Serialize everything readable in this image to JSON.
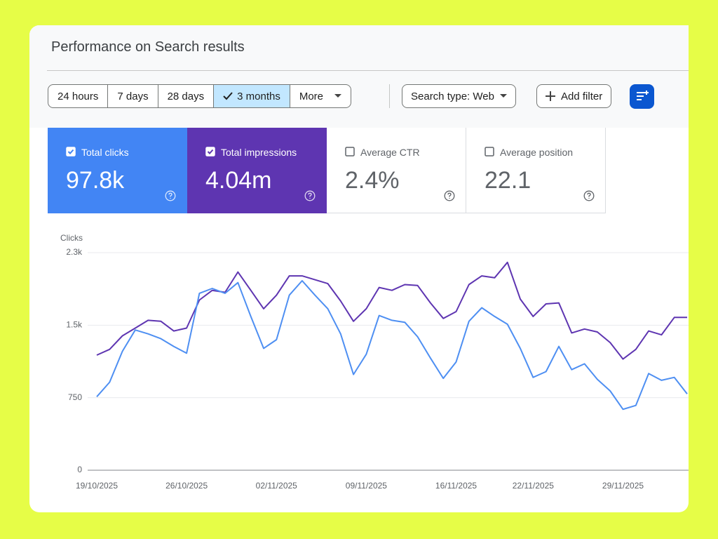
{
  "header": {
    "title": "Performance on Search results"
  },
  "date_ranges": [
    "24 hours",
    "7 days",
    "28 days",
    "3 months",
    "More"
  ],
  "selected_range": 3,
  "filters": {
    "search_type": "Search type: Web",
    "add_filter": "Add filter"
  },
  "metrics": [
    {
      "label": "Total clicks",
      "value": "97.8k",
      "checked": true,
      "color": "#4285f4"
    },
    {
      "label": "Total impressions",
      "value": "4.04m",
      "checked": true,
      "color": "#5e35b1"
    },
    {
      "label": "Average CTR",
      "value": "2.4%",
      "checked": false,
      "color": "#00897b"
    },
    {
      "label": "Average position",
      "value": "22.1",
      "checked": false,
      "color": "#e8710a"
    }
  ],
  "chart_data": {
    "type": "line",
    "y_label": "Clicks",
    "categories": [
      "19/10/2025",
      null,
      null,
      null,
      null,
      null,
      null,
      "26/10/2025",
      null,
      null,
      null,
      null,
      null,
      null,
      "02/11/2025",
      null,
      null,
      null,
      null,
      null,
      null,
      "09/11/2025",
      null,
      null,
      null,
      null,
      null,
      null,
      "16/11/2025",
      null,
      null,
      null,
      null,
      null,
      "22/11/2025",
      null,
      null,
      null,
      null,
      null,
      null,
      "29/11/2025",
      null,
      null,
      null,
      null,
      null
    ],
    "series": [
      {
        "color": "#5e35b1",
        "values": [
          1190,
          1250,
          1390,
          1470,
          1550,
          1540,
          1440,
          1470,
          1760,
          1860,
          1840,
          2050,
          1860,
          1670,
          1810,
          2010,
          2010,
          1970,
          1930,
          1750,
          1540,
          1670,
          1890,
          1860,
          1920,
          1910,
          1730,
          1570,
          1640,
          1920,
          2010,
          1990,
          2150,
          1770,
          1590,
          1720,
          1730,
          1420,
          1460,
          1430,
          1320,
          1150,
          1250,
          1440,
          1400,
          1580,
          1580
        ]
      },
      {
        "color": "#4e8ff2",
        "values": [
          760,
          910,
          1230,
          1450,
          1410,
          1360,
          1280,
          1210,
          1830,
          1880,
          1830,
          1940,
          1590,
          1260,
          1350,
          1810,
          1960,
          1810,
          1670,
          1410,
          990,
          1200,
          1600,
          1550,
          1530,
          1380,
          1160,
          950,
          1120,
          1540,
          1680,
          1590,
          1510,
          1260,
          960,
          1020,
          1280,
          1040,
          1100,
          940,
          820,
          630,
          670,
          1000,
          930,
          960,
          790
        ]
      }
    ],
    "ylim": [
      0,
      2250
    ],
    "yticks": [
      0,
      750,
      {
        "value": 1500,
        "label": "1.5k"
      },
      {
        "value": 2250,
        "label": "2.3k"
      }
    ],
    "grid": true
  }
}
